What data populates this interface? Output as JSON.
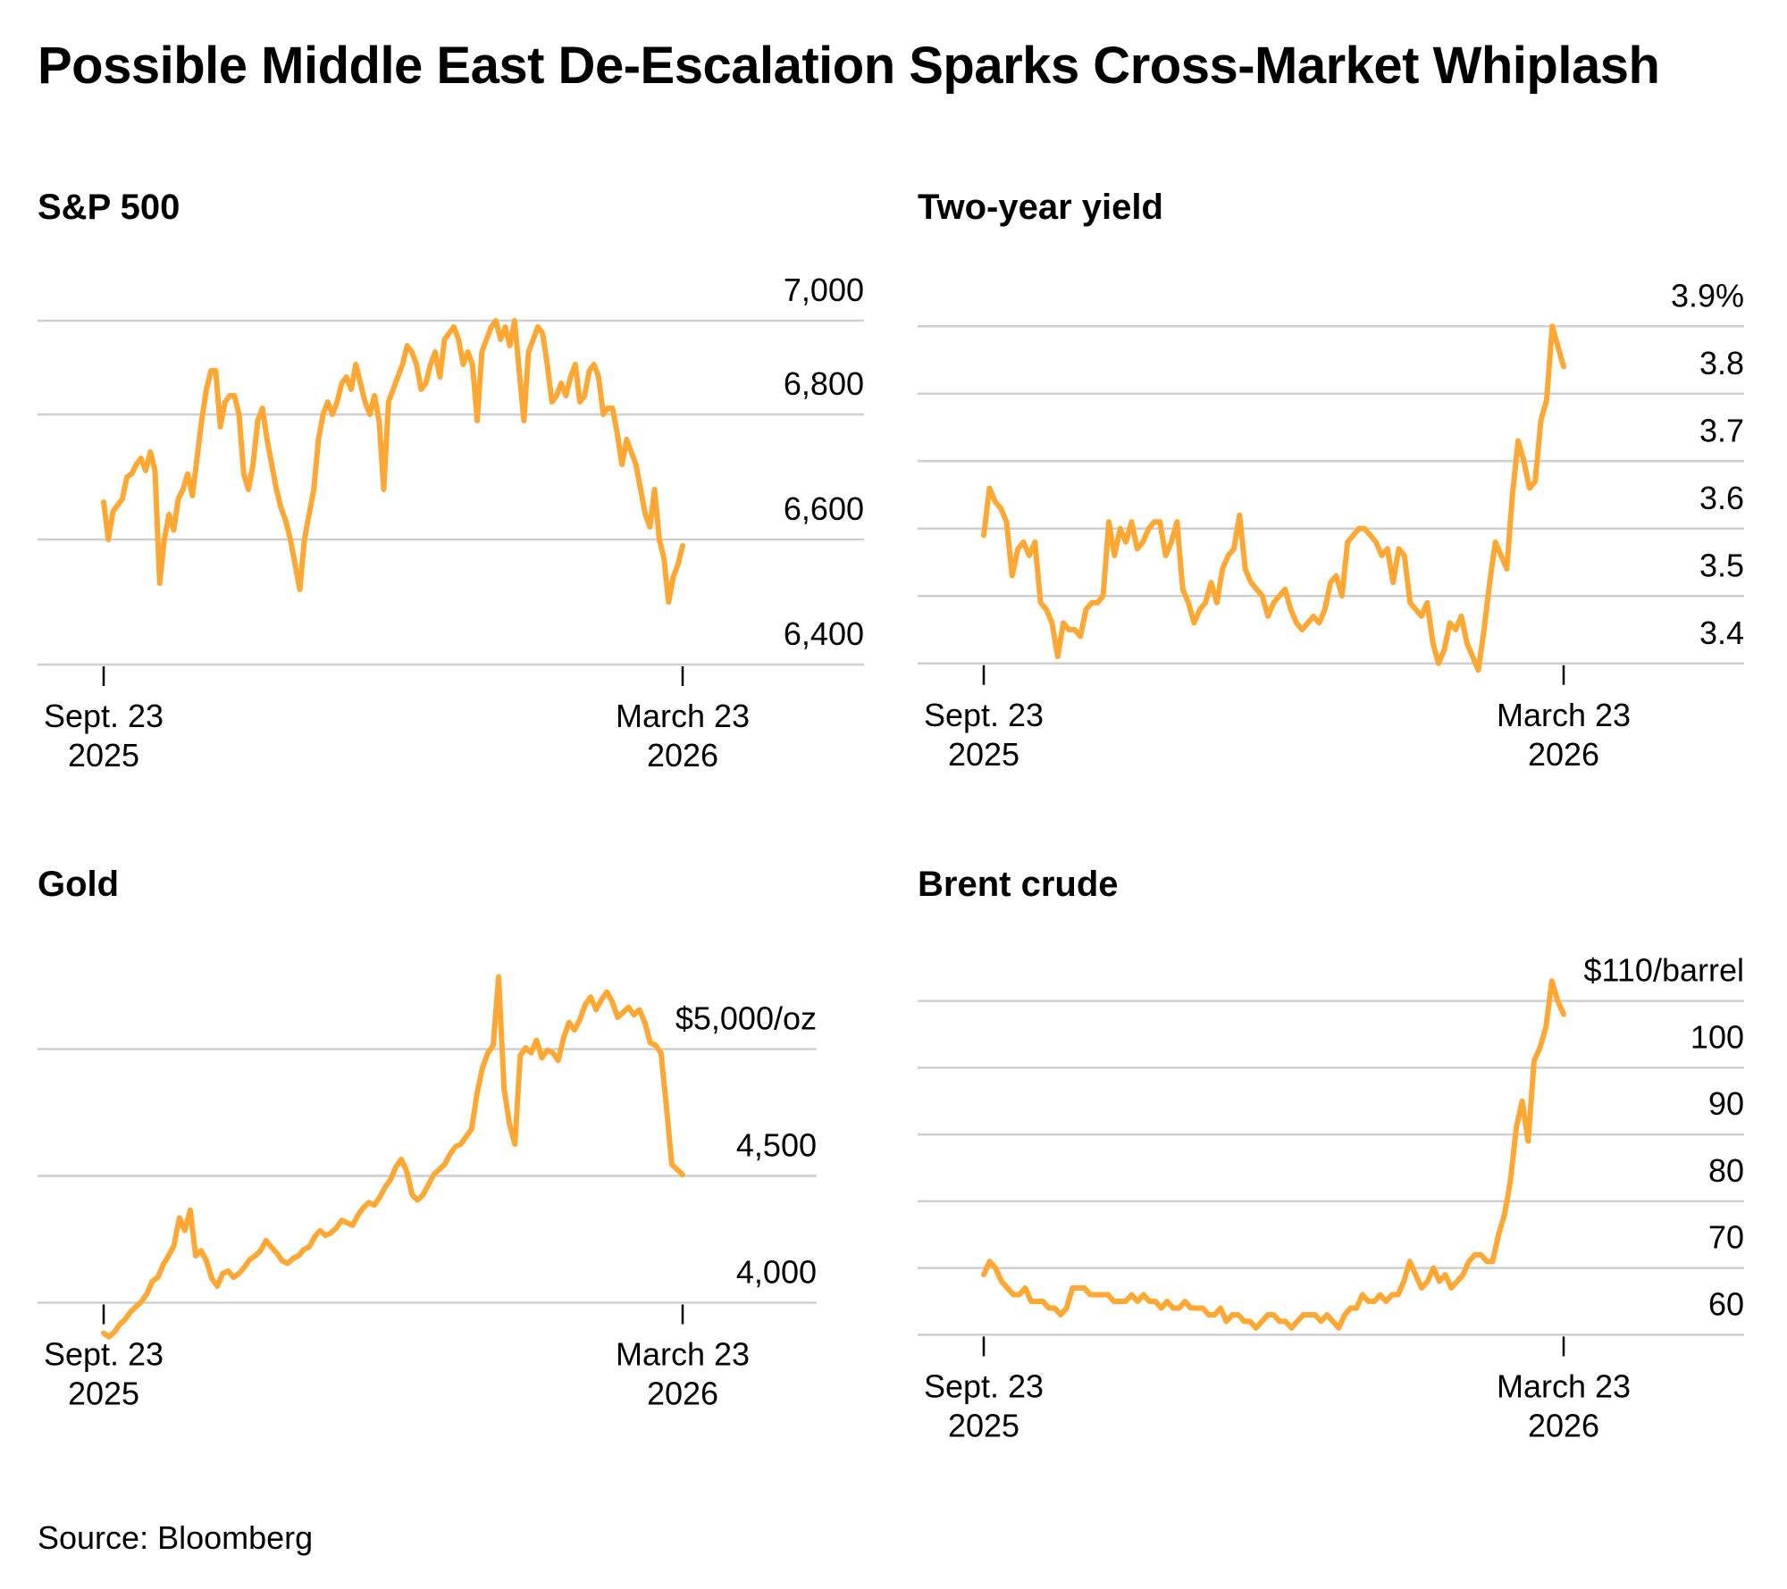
{
  "title": "Possible Middle East De-Escalation Sparks Cross-Market Whiplash",
  "source": "Source: Bloomberg",
  "line_color": "#ffa733",
  "chart_data": [
    {
      "type": "line",
      "title": "S&P 500",
      "x_start_label": [
        "Sept. 23",
        "2025"
      ],
      "x_end_label": [
        "March 23",
        "2026"
      ],
      "xlim": [
        "2025-09-23",
        "2026-03-23"
      ],
      "ylim": [
        6400,
        7000
      ],
      "y_ticks": [
        6400,
        6600,
        6800,
        7000
      ],
      "y_tick_labels": [
        "6,400",
        "6,600",
        "6,800",
        "7,000"
      ],
      "y_gridlines": [
        6400,
        6600,
        6800,
        6950
      ],
      "series": [
        {
          "values": [
            6660,
            6600,
            6645,
            6655,
            6665,
            6700,
            6705,
            6720,
            6730,
            6710,
            6740,
            6710,
            6530,
            6600,
            6640,
            6615,
            6665,
            6680,
            6705,
            6670,
            6730,
            6790,
            6840,
            6870,
            6870,
            6780,
            6820,
            6830,
            6830,
            6800,
            6705,
            6680,
            6720,
            6790,
            6810,
            6760,
            6720,
            6680,
            6650,
            6630,
            6600,
            6560,
            6520,
            6600,
            6640,
            6680,
            6760,
            6800,
            6820,
            6800,
            6820,
            6850,
            6860,
            6840,
            6880,
            6850,
            6820,
            6800,
            6830,
            6790,
            6680,
            6820,
            6840,
            6860,
            6880,
            6910,
            6900,
            6880,
            6840,
            6850,
            6880,
            6900,
            6860,
            6920,
            6930,
            6940,
            6920,
            6880,
            6900,
            6880,
            6790,
            6900,
            6920,
            6940,
            6950,
            6920,
            6940,
            6910,
            6950,
            6870,
            6790,
            6900,
            6920,
            6940,
            6930,
            6880,
            6820,
            6830,
            6850,
            6830,
            6860,
            6880,
            6820,
            6830,
            6870,
            6880,
            6860,
            6800,
            6810,
            6810,
            6770,
            6720,
            6760,
            6740,
            6720,
            6680,
            6640,
            6620,
            6680,
            6600,
            6570,
            6500,
            6540,
            6560,
            6590
          ]
        }
      ]
    },
    {
      "type": "line",
      "title": "Two-year yield",
      "x_start_label": [
        "Sept. 23",
        "2025"
      ],
      "x_end_label": [
        "March 23",
        "2026"
      ],
      "xlim": [
        "2025-09-23",
        "2026-03-23"
      ],
      "ylim": [
        3.35,
        3.9
      ],
      "y_ticks": [
        3.4,
        3.5,
        3.6,
        3.7,
        3.8,
        3.9
      ],
      "y_tick_labels": [
        "3.4",
        "3.5",
        "3.6",
        "3.7",
        "3.8",
        "3.9%"
      ],
      "y_gridlines": [
        3.35,
        3.45,
        3.55,
        3.65,
        3.75,
        3.85
      ],
      "series": [
        {
          "values": [
            3.54,
            3.61,
            3.59,
            3.58,
            3.56,
            3.48,
            3.52,
            3.53,
            3.51,
            3.53,
            3.44,
            3.43,
            3.41,
            3.36,
            3.41,
            3.4,
            3.4,
            3.39,
            3.43,
            3.44,
            3.44,
            3.45,
            3.56,
            3.51,
            3.55,
            3.53,
            3.56,
            3.52,
            3.53,
            3.55,
            3.56,
            3.56,
            3.51,
            3.53,
            3.56,
            3.46,
            3.44,
            3.41,
            3.43,
            3.44,
            3.47,
            3.44,
            3.49,
            3.51,
            3.52,
            3.57,
            3.49,
            3.47,
            3.46,
            3.45,
            3.42,
            3.44,
            3.45,
            3.46,
            3.43,
            3.41,
            3.4,
            3.41,
            3.42,
            3.41,
            3.43,
            3.47,
            3.48,
            3.45,
            3.53,
            3.54,
            3.55,
            3.55,
            3.54,
            3.53,
            3.51,
            3.52,
            3.47,
            3.52,
            3.51,
            3.44,
            3.43,
            3.42,
            3.44,
            3.38,
            3.35,
            3.37,
            3.41,
            3.4,
            3.42,
            3.38,
            3.36,
            3.34,
            3.4,
            3.47,
            3.53,
            3.51,
            3.49,
            3.6,
            3.68,
            3.65,
            3.61,
            3.62,
            3.71,
            3.74,
            3.85,
            3.82,
            3.79
          ]
        }
      ]
    },
    {
      "type": "line",
      "title": "Gold",
      "x_start_label": [
        "Sept. 23",
        "2025"
      ],
      "x_end_label": [
        "March 23",
        "2026"
      ],
      "xlim": [
        "2025-09-23",
        "2026-03-23"
      ],
      "ylim": [
        3800,
        5200
      ],
      "y_ticks": [
        4000,
        4500,
        5000
      ],
      "y_tick_labels": [
        "4,000",
        "4,500",
        "$5,000/oz"
      ],
      "y_gridlines": [
        3875,
        4375,
        4875
      ],
      "series": [
        {
          "values": [
            3755,
            3740,
            3760,
            3790,
            3810,
            3840,
            3860,
            3880,
            3910,
            3960,
            3975,
            4025,
            4060,
            4100,
            4210,
            4160,
            4240,
            4060,
            4080,
            4040,
            3970,
            3940,
            3990,
            4000,
            3975,
            3990,
            4015,
            4045,
            4060,
            4080,
            4120,
            4095,
            4070,
            4040,
            4030,
            4050,
            4060,
            4085,
            4095,
            4135,
            4160,
            4140,
            4150,
            4170,
            4200,
            4190,
            4180,
            4220,
            4250,
            4270,
            4260,
            4290,
            4330,
            4360,
            4410,
            4440,
            4395,
            4300,
            4280,
            4300,
            4340,
            4380,
            4400,
            4420,
            4460,
            4490,
            4500,
            4530,
            4560,
            4700,
            4800,
            4860,
            4890,
            5160,
            4720,
            4580,
            4500,
            4850,
            4880,
            4860,
            4910,
            4840,
            4870,
            4860,
            4830,
            4920,
            4980,
            4950,
            4990,
            5050,
            5080,
            5030,
            5070,
            5100,
            5060,
            5000,
            5020,
            5040,
            5010,
            5030,
            4980,
            4900,
            4890,
            4860,
            4650,
            4420,
            4400,
            4380
          ]
        }
      ]
    },
    {
      "type": "line",
      "title": "Brent crude",
      "x_start_label": [
        "Sept. 23",
        "2025"
      ],
      "x_end_label": [
        "March 23",
        "2026"
      ],
      "xlim": [
        "2025-09-23",
        "2026-03-23"
      ],
      "ylim": [
        55,
        110
      ],
      "y_ticks": [
        60,
        70,
        80,
        90,
        100,
        110
      ],
      "y_tick_labels": [
        "60",
        "70",
        "80",
        "90",
        "100",
        "$110/barrel"
      ],
      "y_gridlines": [
        55,
        65,
        75,
        85,
        95,
        105
      ],
      "series": [
        {
          "values": [
            64,
            66,
            65,
            63,
            62,
            61,
            61,
            62,
            60,
            60,
            60,
            59,
            59,
            58,
            59,
            62,
            62,
            62,
            61,
            61,
            61,
            61,
            60,
            60,
            60,
            61,
            60,
            61,
            60,
            60,
            59,
            60,
            59,
            59,
            60,
            59,
            59,
            59,
            58,
            58,
            59,
            57,
            58,
            58,
            57,
            57,
            56,
            57,
            58,
            58,
            57,
            57,
            56,
            57,
            58,
            58,
            58,
            57,
            58,
            57,
            56,
            58,
            59,
            59,
            61,
            60,
            60,
            61,
            60,
            61,
            61,
            63,
            66,
            64,
            62,
            63,
            65,
            63,
            64,
            62,
            63,
            64,
            66,
            67,
            67,
            66,
            66,
            70,
            73,
            78,
            86,
            90,
            84,
            96,
            98,
            101,
            108,
            105,
            103
          ]
        }
      ]
    }
  ]
}
